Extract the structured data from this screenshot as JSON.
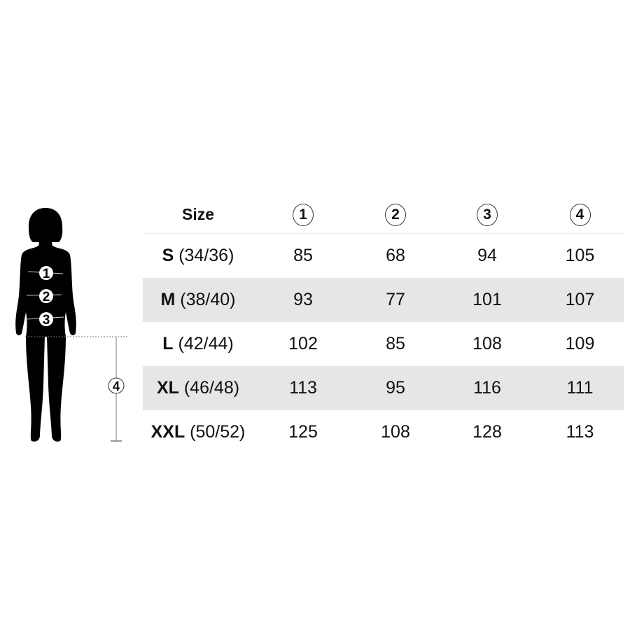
{
  "header": {
    "size_label": "Size",
    "measurements": [
      "1",
      "2",
      "3",
      "4"
    ]
  },
  "rows": [
    {
      "code": "S",
      "eu": "(34/36)",
      "values": [
        "85",
        "68",
        "94",
        "105"
      ]
    },
    {
      "code": "M",
      "eu": "(38/40)",
      "values": [
        "93",
        "77",
        "101",
        "107"
      ]
    },
    {
      "code": "L",
      "eu": "(42/44)",
      "values": [
        "102",
        "85",
        "108",
        "109"
      ]
    },
    {
      "code": "XL",
      "eu": "(46/48)",
      "values": [
        "113",
        "95",
        "116",
        "111"
      ]
    },
    {
      "code": "XXL",
      "eu": "(50/52)",
      "values": [
        "125",
        "108",
        "128",
        "113"
      ]
    }
  ],
  "figure": {
    "markers": [
      "1",
      "2",
      "3"
    ],
    "length_marker": "4"
  },
  "colors": {
    "stripe": "#e6e6e6",
    "text": "#111111"
  }
}
